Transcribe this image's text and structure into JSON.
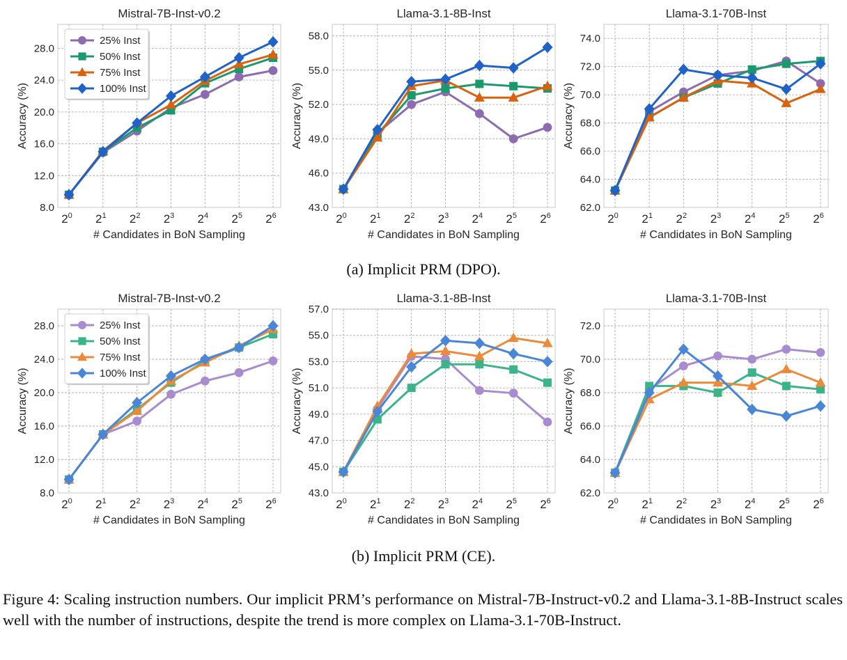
{
  "figure": {
    "subcaption_a": "(a) Implicit PRM (DPO).",
    "subcaption_b": "(b) Implicit PRM (CE).",
    "caption": "Figure 4: Scaling instruction numbers. Our implicit PRM’s performance on Mistral-7B-Instruct-v0.2 and Llama-3.1-8B-Instruct scales well with the number of instructions, despite the trend is more complex on Llama-3.1-70B-Instruct."
  },
  "legend": [
    {
      "name": "25% Inst",
      "marker": "circle"
    },
    {
      "name": "50% Inst",
      "marker": "square"
    },
    {
      "name": "75% Inst",
      "marker": "triangle"
    },
    {
      "name": "100% Inst",
      "marker": "diamond"
    }
  ],
  "palettes": {
    "dpo": [
      "#8c6bb1",
      "#1a9a6c",
      "#d9620f",
      "#1f63c9"
    ],
    "ce": [
      "#a98bd0",
      "#3bb48a",
      "#ec8a3a",
      "#4a86d8"
    ]
  },
  "chart_data": [
    {
      "type": "line",
      "group": "dpo",
      "title": "Mistral-7B-Inst-v0.2",
      "xlabel": "# Candidates in BoN Sampling",
      "ylabel": "Accuracy (%)",
      "x": [
        "2^0",
        "2^1",
        "2^2",
        "2^3",
        "2^4",
        "2^5",
        "2^6"
      ],
      "ylim": [
        8.0,
        31.0
      ],
      "yticks": [
        8.0,
        12.0,
        16.0,
        20.0,
        24.0,
        28.0
      ],
      "grid": true,
      "legend": "top-left",
      "series": [
        {
          "name": "25% Inst",
          "values": [
            9.6,
            14.9,
            17.6,
            20.5,
            22.2,
            24.4,
            25.2
          ]
        },
        {
          "name": "50% Inst",
          "values": [
            9.6,
            15.0,
            18.0,
            20.2,
            23.6,
            25.4,
            26.8
          ]
        },
        {
          "name": "75% Inst",
          "values": [
            9.6,
            15.1,
            18.6,
            20.9,
            23.9,
            26.0,
            27.2
          ]
        },
        {
          "name": "100% Inst",
          "values": [
            9.6,
            15.0,
            18.6,
            22.0,
            24.4,
            26.8,
            28.8
          ]
        }
      ]
    },
    {
      "type": "line",
      "group": "dpo",
      "title": "Llama-3.1-8B-Inst",
      "xlabel": "# Candidates in BoN Sampling",
      "ylabel": "Accuracy (%)",
      "x": [
        "2^0",
        "2^1",
        "2^2",
        "2^3",
        "2^4",
        "2^5",
        "2^6"
      ],
      "ylim": [
        43.0,
        59.0
      ],
      "yticks": [
        43.0,
        46.0,
        49.0,
        52.0,
        55.0,
        58.0
      ],
      "grid": true,
      "legend": "none",
      "series": [
        {
          "name": "25% Inst",
          "values": [
            44.6,
            49.5,
            52.0,
            53.1,
            51.2,
            49.0,
            50.0
          ]
        },
        {
          "name": "50% Inst",
          "values": [
            44.6,
            49.4,
            52.8,
            53.4,
            53.8,
            53.6,
            53.4
          ]
        },
        {
          "name": "75% Inst",
          "values": [
            44.6,
            49.1,
            53.6,
            54.1,
            52.6,
            52.6,
            53.6
          ]
        },
        {
          "name": "100% Inst",
          "values": [
            44.6,
            49.8,
            54.0,
            54.2,
            55.4,
            55.2,
            57.0
          ]
        }
      ]
    },
    {
      "type": "line",
      "group": "dpo",
      "title": "Llama-3.1-70B-Inst",
      "xlabel": "# Candidates in BoN Sampling",
      "ylabel": "Accuracy (%)",
      "x": [
        "2^0",
        "2^1",
        "2^2",
        "2^3",
        "2^4",
        "2^5",
        "2^6"
      ],
      "ylim": [
        62.0,
        75.0
      ],
      "yticks": [
        62.0,
        64.0,
        66.0,
        68.0,
        70.0,
        72.0,
        74.0
      ],
      "grid": true,
      "legend": "none",
      "series": [
        {
          "name": "25% Inst",
          "values": [
            63.2,
            68.8,
            70.2,
            71.4,
            71.7,
            72.4,
            70.8
          ]
        },
        {
          "name": "50% Inst",
          "values": [
            63.2,
            68.4,
            69.8,
            70.8,
            71.8,
            72.2,
            72.4
          ]
        },
        {
          "name": "75% Inst",
          "values": [
            63.2,
            68.4,
            69.8,
            71.0,
            70.8,
            69.4,
            70.4
          ]
        },
        {
          "name": "100% Inst",
          "values": [
            63.2,
            69.0,
            71.8,
            71.4,
            71.2,
            70.4,
            72.2
          ]
        }
      ]
    },
    {
      "type": "line",
      "group": "ce",
      "title": "Mistral-7B-Inst-v0.2",
      "xlabel": "# Candidates in BoN Sampling",
      "ylabel": "Accuracy (%)",
      "x": [
        "2^0",
        "2^1",
        "2^2",
        "2^3",
        "2^4",
        "2^5",
        "2^6"
      ],
      "ylim": [
        8.0,
        30.0
      ],
      "yticks": [
        8.0,
        12.0,
        16.0,
        20.0,
        24.0,
        28.0
      ],
      "grid": true,
      "legend": "top-left",
      "series": [
        {
          "name": "25% Inst",
          "values": [
            9.6,
            15.0,
            16.6,
            19.8,
            21.4,
            22.4,
            23.8
          ]
        },
        {
          "name": "50% Inst",
          "values": [
            9.6,
            15.0,
            18.0,
            21.2,
            23.8,
            25.4,
            27.0
          ]
        },
        {
          "name": "75% Inst",
          "values": [
            9.6,
            15.0,
            17.8,
            21.4,
            23.6,
            25.6,
            27.6
          ]
        },
        {
          "name": "100% Inst",
          "values": [
            9.6,
            15.0,
            18.8,
            22.0,
            24.0,
            25.4,
            28.0
          ]
        }
      ]
    },
    {
      "type": "line",
      "group": "ce",
      "title": "Llama-3.1-8B-Inst",
      "xlabel": "# Candidates in BoN Sampling",
      "ylabel": "Accuracy (%)",
      "x": [
        "2^0",
        "2^1",
        "2^2",
        "2^3",
        "2^4",
        "2^5",
        "2^6"
      ],
      "ylim": [
        43.0,
        57.0
      ],
      "yticks": [
        43.0,
        45.0,
        47.0,
        49.0,
        51.0,
        53.0,
        55.0,
        57.0
      ],
      "grid": true,
      "legend": "none",
      "series": [
        {
          "name": "25% Inst",
          "values": [
            44.6,
            49.4,
            53.4,
            53.2,
            50.8,
            50.6,
            48.4
          ]
        },
        {
          "name": "50% Inst",
          "values": [
            44.6,
            48.6,
            51.0,
            52.8,
            52.8,
            52.4,
            51.4
          ]
        },
        {
          "name": "75% Inst",
          "values": [
            44.6,
            49.6,
            53.6,
            53.8,
            53.4,
            54.8,
            54.4
          ]
        },
        {
          "name": "100% Inst",
          "values": [
            44.6,
            49.2,
            52.6,
            54.6,
            54.4,
            53.6,
            53.0
          ]
        }
      ]
    },
    {
      "type": "line",
      "group": "ce",
      "title": "Llama-3.1-70B-Inst",
      "xlabel": "# Candidates in BoN Sampling",
      "ylabel": "Accuracy (%)",
      "x": [
        "2^0",
        "2^1",
        "2^2",
        "2^3",
        "2^4",
        "2^5",
        "2^6"
      ],
      "ylim": [
        62.0,
        73.0
      ],
      "yticks": [
        62.0,
        64.0,
        66.0,
        68.0,
        70.0,
        72.0
      ],
      "grid": true,
      "legend": "none",
      "series": [
        {
          "name": "25% Inst",
          "values": [
            63.2,
            68.2,
            69.6,
            70.2,
            70.0,
            70.6,
            70.4
          ]
        },
        {
          "name": "50% Inst",
          "values": [
            63.2,
            68.4,
            68.4,
            68.0,
            69.2,
            68.4,
            68.2
          ]
        },
        {
          "name": "75% Inst",
          "values": [
            63.2,
            67.6,
            68.6,
            68.6,
            68.4,
            69.4,
            68.6
          ]
        },
        {
          "name": "100% Inst",
          "values": [
            63.2,
            68.0,
            70.6,
            69.0,
            67.0,
            66.6,
            67.2
          ]
        }
      ]
    }
  ]
}
